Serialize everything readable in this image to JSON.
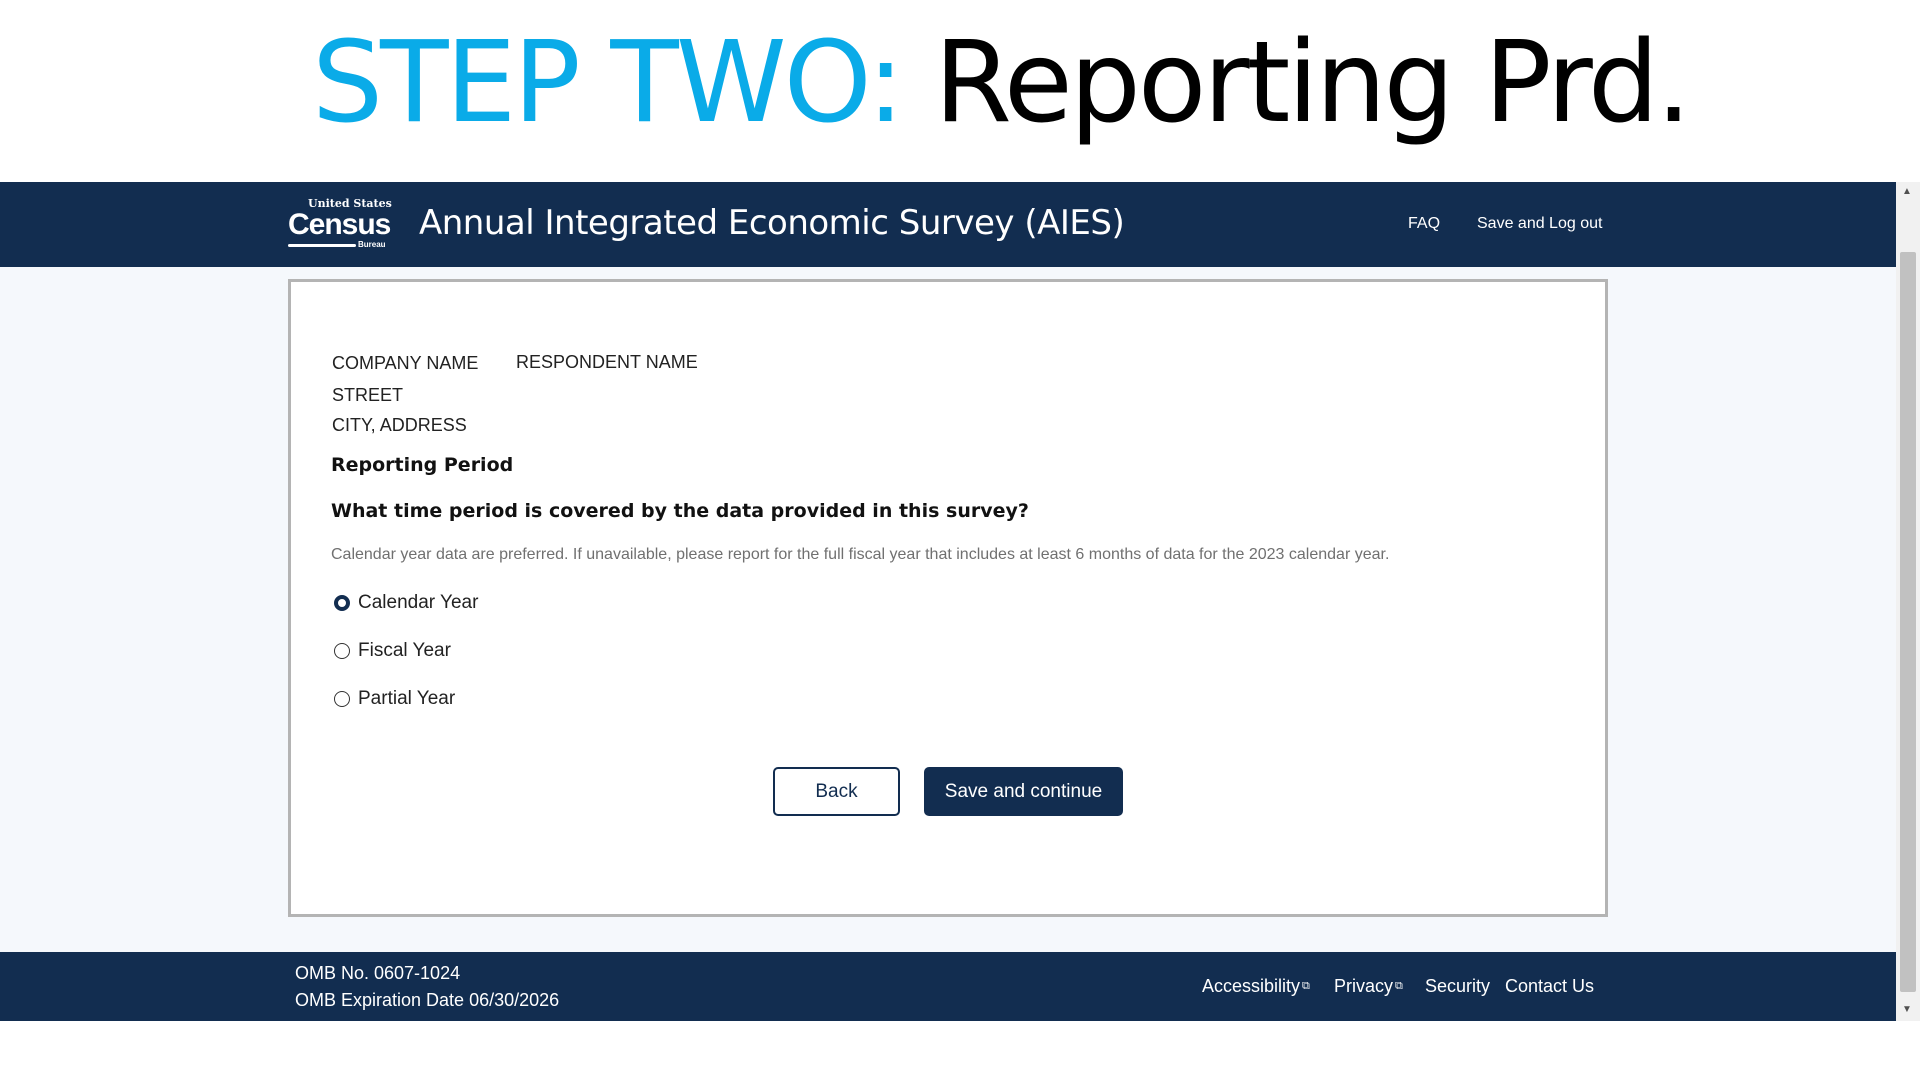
{
  "slide": {
    "step": "STEP TWO:",
    "title": "Reporting Prd."
  },
  "header": {
    "logo": {
      "line1": "United States",
      "line2": "Census",
      "line3": "Bureau"
    },
    "title": "Annual Integrated Economic Survey (AIES)",
    "links": [
      "FAQ",
      "Save and Log out"
    ]
  },
  "respondent": {
    "company": "COMPANY NAME",
    "respondent": "RESPONDENT NAME",
    "street": "STREET",
    "city": "CITY, ADDRESS"
  },
  "form": {
    "section": "Reporting Period",
    "question": "What time period is covered by the data provided in this survey?",
    "hint": "Calendar year data are preferred. If unavailable, please report for the full fiscal year that includes at least 6 months of data for the 2023 calendar year.",
    "options": [
      {
        "label": "Calendar Year",
        "selected": true
      },
      {
        "label": "Fiscal Year",
        "selected": false
      },
      {
        "label": "Partial Year",
        "selected": false
      }
    ],
    "back_label": "Back",
    "save_label": "Save and continue"
  },
  "footer": {
    "omb": "OMB No. 0607-1024",
    "expiration": "OMB Expiration Date 06/30/2026",
    "links": [
      "Accessibility",
      "Privacy",
      "Security",
      "Contact Us"
    ]
  },
  "colors": {
    "brand": "#122d50",
    "accent": "#0aabe8"
  }
}
